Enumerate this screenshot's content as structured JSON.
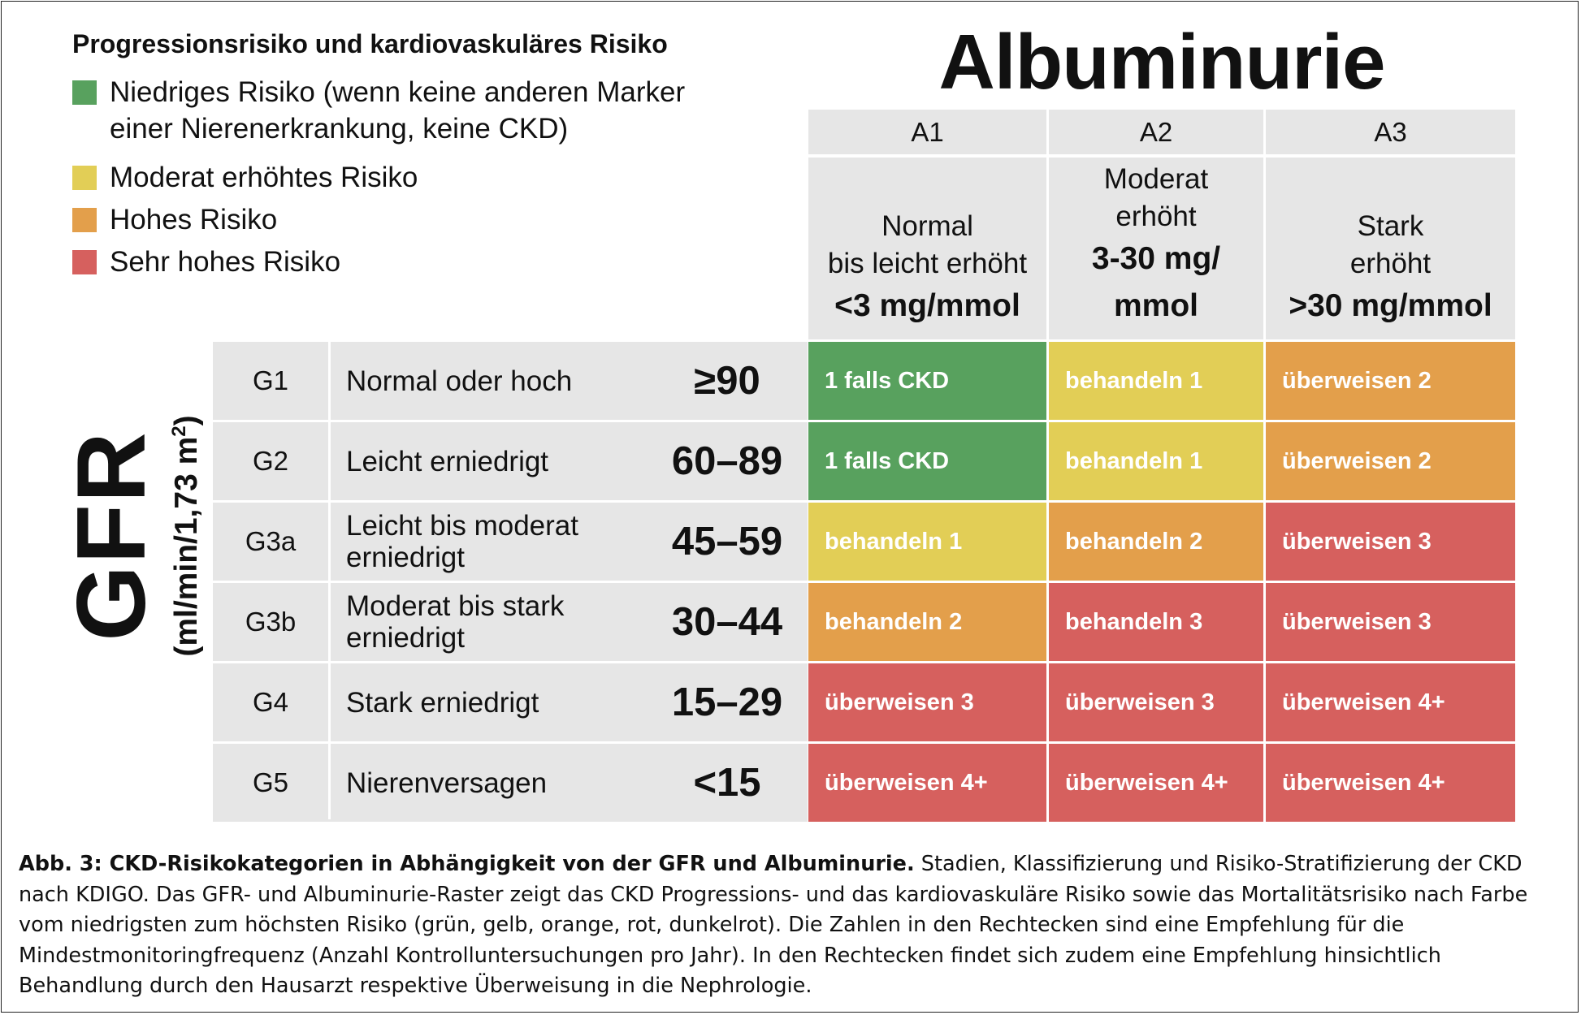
{
  "legend": {
    "title": "Progressionsrisiko und kardiovaskuläres Risiko",
    "items": [
      {
        "label": "Niedriges Risiko (wenn keine anderen Marker\neiner Nierenerkrankung, keine CKD)",
        "color": "#58a15e"
      },
      {
        "label": "Moderat erhöhtes Risiko",
        "color": "#e2ce56"
      },
      {
        "label": "Hohes Risiko",
        "color": "#e39f4b"
      },
      {
        "label": "Sehr hohes Risiko",
        "color": "#d6605e"
      }
    ]
  },
  "albuminurie": {
    "title": "Albuminurie",
    "columns": [
      {
        "code": "A1",
        "desc": "Normal\nbis leicht erhöht",
        "value": "<3 mg/mmol"
      },
      {
        "code": "A2",
        "desc": "Moderat\nerhöht",
        "value": "3-30 mg/\nmmol"
      },
      {
        "code": "A3",
        "desc": "Stark\nerhöht",
        "value": ">30 mg/mmol"
      }
    ]
  },
  "gfr": {
    "title": "GFR",
    "unit_main": "(ml/min/1,73 m",
    "unit_sup": "2",
    "unit_end": ")",
    "rows": [
      {
        "code": "G1",
        "desc": "Normal oder hoch",
        "value": "≥90",
        "cells": [
          {
            "text": "1 falls CKD",
            "risk": "green"
          },
          {
            "text": "behandeln 1",
            "risk": "yellow"
          },
          {
            "text": "überweisen 2",
            "risk": "orange"
          }
        ]
      },
      {
        "code": "G2",
        "desc": "Leicht erniedrigt",
        "value": "60–89",
        "cells": [
          {
            "text": "1 falls CKD",
            "risk": "green"
          },
          {
            "text": "behandeln 1",
            "risk": "yellow"
          },
          {
            "text": "überweisen 2",
            "risk": "orange"
          }
        ]
      },
      {
        "code": "G3a",
        "desc": "Leicht bis moderat\nerniedrigt",
        "value": "45–59",
        "cells": [
          {
            "text": "behandeln 1",
            "risk": "yellow"
          },
          {
            "text": "behandeln 2",
            "risk": "orange"
          },
          {
            "text": "überweisen 3",
            "risk": "red"
          }
        ]
      },
      {
        "code": "G3b",
        "desc": "Moderat bis stark\nerniedrigt",
        "value": "30–44",
        "cells": [
          {
            "text": "behandeln 2",
            "risk": "orange"
          },
          {
            "text": "behandeln 3",
            "risk": "red"
          },
          {
            "text": "überweisen 3",
            "risk": "red"
          }
        ]
      },
      {
        "code": "G4",
        "desc": "Stark erniedrigt",
        "value": "15–29",
        "cells": [
          {
            "text": "überweisen 3",
            "risk": "red"
          },
          {
            "text": "überweisen 3",
            "risk": "red"
          },
          {
            "text": "überweisen 4+",
            "risk": "red"
          }
        ]
      },
      {
        "code": "G5",
        "desc": "Nierenversagen",
        "value": "<15",
        "cells": [
          {
            "text": "überweisen 4+",
            "risk": "red"
          },
          {
            "text": "überweisen 4+",
            "risk": "red"
          },
          {
            "text": "überweisen 4+",
            "risk": "red"
          }
        ]
      }
    ]
  },
  "risk_colors": {
    "green": "#58a15e",
    "yellow": "#e2ce56",
    "orange": "#e39f4b",
    "red": "#d6605e"
  },
  "caption": {
    "bold": "Abb. 3: CKD-Risikokategorien in Abhängigkeit von der GFR und Albuminurie.",
    "text": " Stadien, Klassifizierung und Risiko-Stratifizierung der CKD nach KDIGO. Das GFR- und Albuminurie-Raster zeigt das CKD Progressions- und das kardiovaskuläre Risiko sowie das Mortalitätsrisiko nach Farbe vom niedrigsten zum höchsten Risiko (grün, gelb, orange, rot, dunkelrot). Die Zahlen in den Rechtecken sind eine Empfehlung für die Mindestmonitoringfrequenz (Anzahl Kontrolluntersuchungen pro Jahr). In den Rechtecken findet sich zudem eine Empfehlung hinsichtlich Behandlung durch den Hausarzt respektive Überweisung in die Nephrologie."
  }
}
